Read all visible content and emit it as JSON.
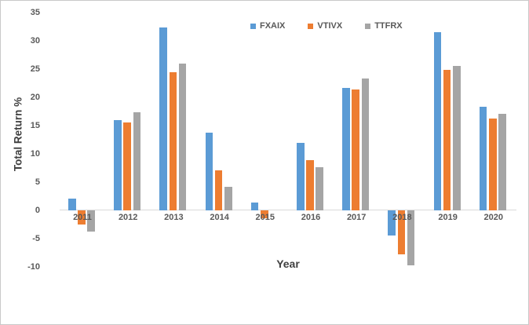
{
  "chart_data": {
    "type": "bar",
    "title": "",
    "xlabel": "Year",
    "ylabel": "Total Return %",
    "categories": [
      "2011",
      "2012",
      "2013",
      "2014",
      "2015",
      "2016",
      "2017",
      "2018",
      "2019",
      "2020"
    ],
    "series": [
      {
        "name": "FXAIX",
        "color": "#5B9BD5",
        "values": [
          2.1,
          16.0,
          32.4,
          13.7,
          1.4,
          12.0,
          21.7,
          -4.4,
          31.5,
          18.4
        ]
      },
      {
        "name": "VTIVX",
        "color": "#ED7D31",
        "values": [
          -2.5,
          15.5,
          24.4,
          7.1,
          -1.4,
          8.9,
          21.4,
          -7.8,
          24.9,
          16.3
        ]
      },
      {
        "name": "TTFRX",
        "color": "#A5A5A5",
        "values": [
          -3.8,
          17.3,
          26.0,
          4.2,
          0,
          7.7,
          23.4,
          -9.7,
          25.6,
          17.1
        ]
      }
    ],
    "yticks": [
      35,
      30,
      25,
      20,
      15,
      10,
      5,
      0,
      -5,
      -10
    ],
    "ylim": [
      -10,
      35
    ],
    "grid": false,
    "legend_position": "top-center",
    "axis_line_color": "#d9d9d9",
    "tick_label_color": "#595959",
    "axis_title_color": "#404040"
  }
}
